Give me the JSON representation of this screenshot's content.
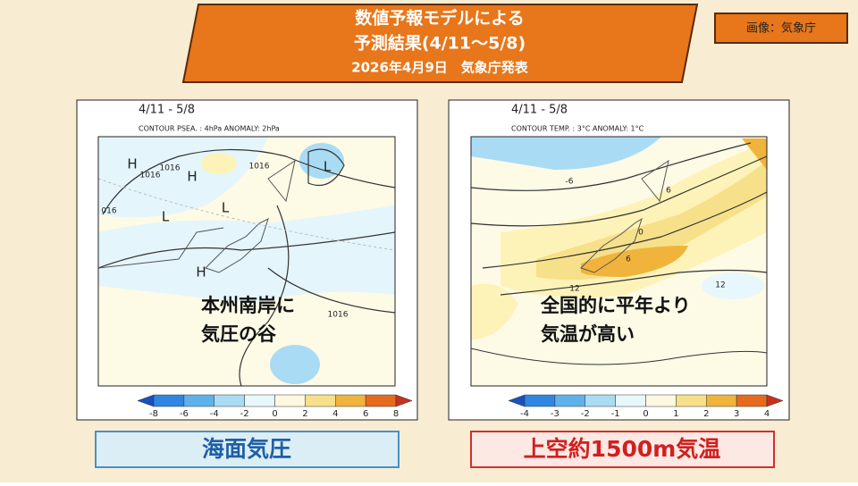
{
  "header": {
    "title_lines": [
      "数値予報モデルによる",
      "予測結果(4/11～5/8)",
      "2026年4月9日　気象庁発表"
    ],
    "credit": "画像：気象庁"
  },
  "panels": [
    {
      "period": "4/11 - 5/8",
      "contour_info": "CONTOUR PSEA. :  4hPa    ANOMALY:  2hPa",
      "map_labels": [
        "H",
        "1016",
        "H",
        "1016",
        "L",
        "L",
        "L",
        "H",
        "1016",
        "1016",
        "016"
      ],
      "annotation": [
        "本州南岸に",
        "気圧の谷"
      ],
      "colorbar": {
        "ticks": [
          -8,
          -6,
          -4,
          -2,
          0,
          2,
          4,
          6,
          8
        ],
        "colors": [
          "#1a4fc0",
          "#2f86e0",
          "#5fb1ea",
          "#a9dcf4",
          "#e8f7fc",
          "#fdf9e1",
          "#f7e08a",
          "#f0b43c",
          "#e66a1e",
          "#c8301e"
        ]
      },
      "caption": "海面気圧"
    },
    {
      "period": "4/11 - 5/8",
      "contour_info": "CONTOUR TEMP. :  3°C    ANOMALY:  1°C",
      "map_labels": [
        "-6",
        "6",
        "0",
        "6",
        "12",
        "12"
      ],
      "annotation": [
        "全国的に平年より",
        "気温が高い"
      ],
      "colorbar": {
        "ticks": [
          -4,
          -3,
          -2,
          -1,
          0,
          1,
          2,
          3,
          4
        ],
        "colors": [
          "#1a4fc0",
          "#2f86e0",
          "#5fb1ea",
          "#a9dcf4",
          "#e8f7fc",
          "#fdf9e1",
          "#f7e08a",
          "#f0b43c",
          "#e66a1e",
          "#c8301e"
        ]
      },
      "caption": "上空約1500m気温"
    }
  ]
}
